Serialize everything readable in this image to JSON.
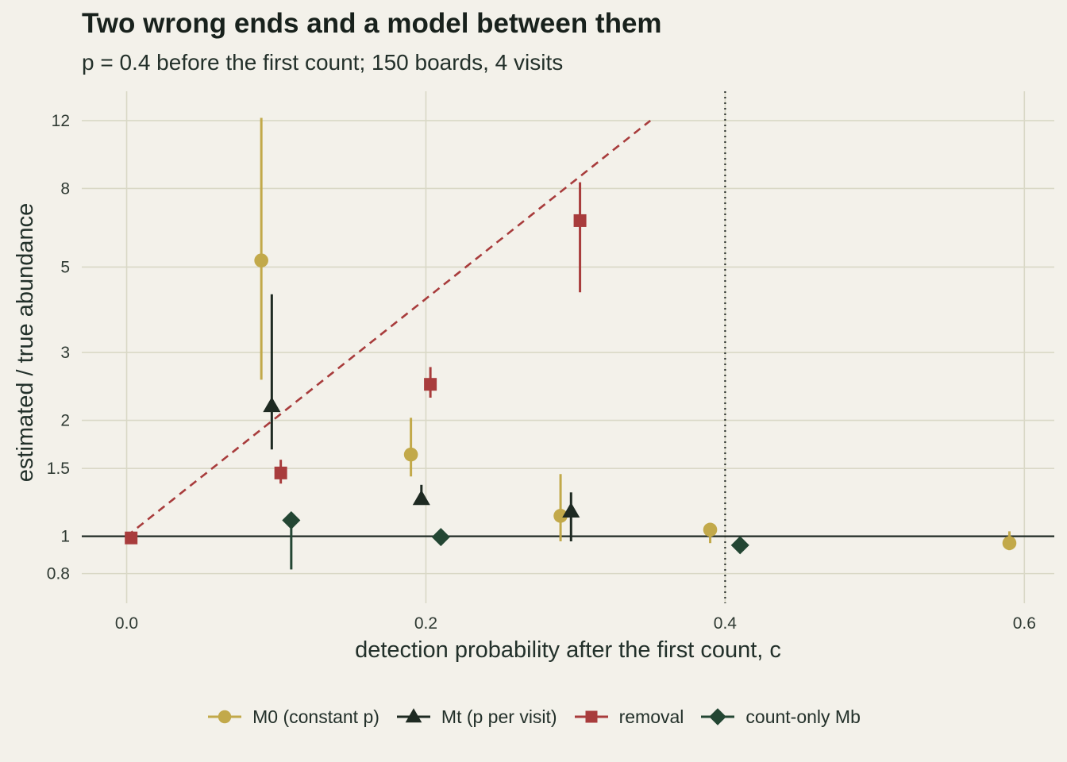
{
  "chart_data": {
    "type": "scatter",
    "title": "Two wrong ends and a model between them",
    "subtitle": "p = 0.4 before the first count; 150 boards, 4 visits",
    "xlabel": "detection probability after the first count, c",
    "ylabel": "estimated / true abundance",
    "x_scale": "linear",
    "y_scale": "log",
    "xlim": [
      -0.03,
      0.62
    ],
    "ylim": [
      0.67,
      14.3
    ],
    "x_ticks": [
      0.0,
      0.2,
      0.4,
      0.6
    ],
    "x_tick_labels": [
      "0.0",
      "0.2",
      "0.4",
      "0.6"
    ],
    "y_ticks": [
      0.8,
      1,
      1.5,
      2,
      3,
      5,
      8,
      12
    ],
    "y_tick_labels": [
      "0.8",
      "1",
      "1.5",
      "2",
      "3",
      "5",
      "8",
      "12"
    ],
    "grid": true,
    "reference_lines": [
      {
        "orientation": "horizontal",
        "y": 1,
        "style": "solid",
        "color": "#1f2a24"
      },
      {
        "orientation": "vertical",
        "x": 0.4,
        "style": "dotted",
        "color": "#2a302c"
      }
    ],
    "curve": {
      "style": "dashed",
      "color": "#a83c3c",
      "x_start": 0.0,
      "x_end": 0.35,
      "y_start": 1.0,
      "y_end": 12.0
    },
    "legend_position": "bottom",
    "series": [
      {
        "name": "M0 (constant p)",
        "marker": "circle",
        "color": "#c2a94a",
        "points": [
          {
            "x": 0.09,
            "y": 5.2,
            "lo": 2.55,
            "hi": 12.2
          },
          {
            "x": 0.19,
            "y": 1.63,
            "lo": 1.43,
            "hi": 2.03
          },
          {
            "x": 0.29,
            "y": 1.13,
            "lo": 0.97,
            "hi": 1.45
          },
          {
            "x": 0.39,
            "y": 1.04,
            "lo": 0.96,
            "hi": 1.05
          },
          {
            "x": 0.59,
            "y": 0.96,
            "lo": 0.92,
            "hi": 1.03
          }
        ]
      },
      {
        "name": "Mt (p per visit)",
        "marker": "triangle",
        "color": "#1e2a22",
        "points": [
          {
            "x": 0.097,
            "y": 2.18,
            "lo": 1.68,
            "hi": 4.25
          },
          {
            "x": 0.197,
            "y": 1.25,
            "lo": 1.21,
            "hi": 1.36
          },
          {
            "x": 0.297,
            "y": 1.16,
            "lo": 0.97,
            "hi": 1.3
          }
        ]
      },
      {
        "name": "removal",
        "marker": "square",
        "color": "#a83c3c",
        "points": [
          {
            "x": 0.003,
            "y": 0.99,
            "lo": 0.98,
            "hi": 1.0
          },
          {
            "x": 0.103,
            "y": 1.46,
            "lo": 1.37,
            "hi": 1.58
          },
          {
            "x": 0.203,
            "y": 2.48,
            "lo": 2.29,
            "hi": 2.75
          },
          {
            "x": 0.303,
            "y": 6.6,
            "lo": 4.3,
            "hi": 8.3
          }
        ]
      },
      {
        "name": "count-only Mb",
        "marker": "diamond",
        "color": "#234633",
        "points": [
          {
            "x": 0.11,
            "y": 1.1,
            "lo": 0.82,
            "hi": 1.1
          },
          {
            "x": 0.21,
            "y": 0.995,
            "lo": 0.995,
            "hi": 0.995
          },
          {
            "x": 0.41,
            "y": 0.948,
            "lo": 0.948,
            "hi": 0.948
          }
        ]
      }
    ]
  }
}
